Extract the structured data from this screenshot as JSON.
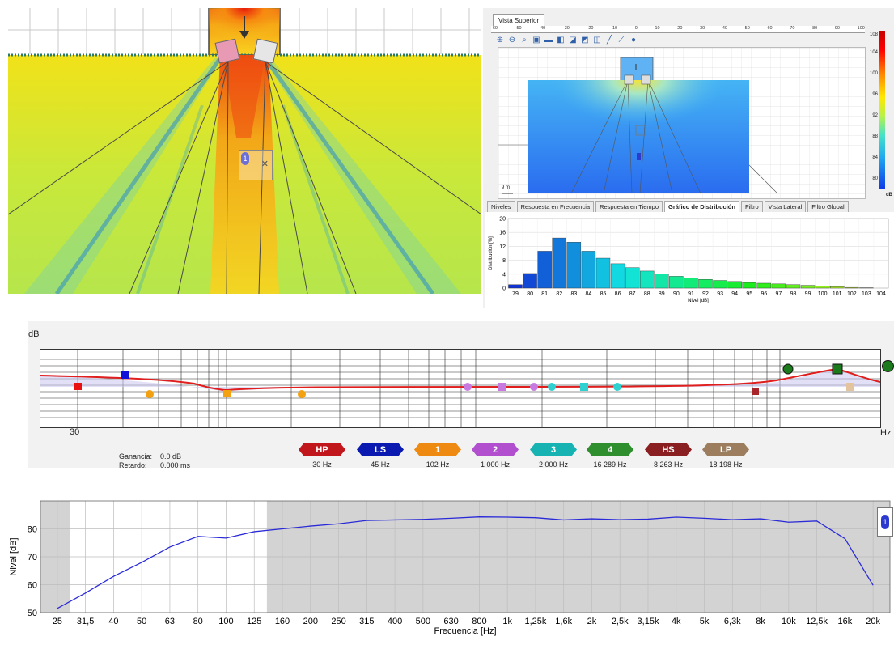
{
  "top_view": {
    "tab_label": "Vista Superior",
    "ruler_labels": [
      "-60",
      "-50",
      "-40",
      "-30",
      "-20",
      "-10",
      "0",
      "10",
      "20",
      "30",
      "40",
      "50",
      "60",
      "70",
      "80",
      "90",
      "100"
    ],
    "scale_label": "9 m",
    "colorbar": {
      "ticks": [
        "108",
        "104",
        "100",
        "96",
        "92",
        "88",
        "84",
        "80"
      ],
      "unit": "dB"
    },
    "tabs": [
      {
        "label": "Niveles",
        "active": false
      },
      {
        "label": "Respuesta en Frecuencia",
        "active": false
      },
      {
        "label": "Respuesta en Tiempo",
        "active": false
      },
      {
        "label": "Gráfico de Distribución",
        "active": true
      },
      {
        "label": "Filtro",
        "active": false
      },
      {
        "label": "Vista Lateral",
        "active": false
      },
      {
        "label": "Filtro Global",
        "active": false
      }
    ]
  },
  "distribution": {
    "chart_data": {
      "type": "bar",
      "ylabel": "Distribución [%]",
      "xlabel": "Nivel [dB]",
      "ylim": [
        0,
        20
      ],
      "yticks": [
        0,
        4,
        8,
        12,
        16,
        20
      ],
      "categories": [
        "79",
        "80",
        "81",
        "82",
        "83",
        "84",
        "85",
        "86",
        "87",
        "88",
        "89",
        "90",
        "91",
        "92",
        "93",
        "94",
        "95",
        "96",
        "97",
        "98",
        "99",
        "100",
        "101",
        "102",
        "103",
        "104"
      ],
      "values": [
        1.0,
        4.2,
        10.6,
        14.4,
        13.2,
        10.6,
        8.6,
        7.0,
        5.9,
        4.9,
        4.1,
        3.4,
        2.9,
        2.5,
        2.2,
        1.9,
        1.6,
        1.4,
        1.2,
        1.0,
        0.8,
        0.6,
        0.4,
        0.2,
        0.1,
        0.0
      ]
    }
  },
  "eq": {
    "db_label": "dB",
    "start_freq_label": "30",
    "hz_label": "Hz",
    "gain_label": "Ganancia:",
    "gain_value": "0.0 dB",
    "delay_label": "Retardo:",
    "delay_value": "0.000 ms",
    "filters": [
      {
        "label": "HP",
        "freq": "30 Hz",
        "color": "#c0161c"
      },
      {
        "label": "LS",
        "freq": "45 Hz",
        "color": "#0a1ab0"
      },
      {
        "label": "1",
        "freq": "102 Hz",
        "color": "#ee8a12"
      },
      {
        "label": "2",
        "freq": "1 000 Hz",
        "color": "#b24fcf"
      },
      {
        "label": "3",
        "freq": "2 000 Hz",
        "color": "#17b3b3"
      },
      {
        "label": "4",
        "freq": "16 289 Hz",
        "color": "#2f8f2f"
      },
      {
        "label": "HS",
        "freq": "8 263 Hz",
        "color": "#8a1f22"
      },
      {
        "label": "LP",
        "freq": "18 198 Hz",
        "color": "#9c7d5e"
      }
    ]
  },
  "freq_response": {
    "chart_data": {
      "type": "line",
      "ylabel": "Nivel [dB]",
      "xlabel": "Frecuencia [Hz]",
      "ylim": [
        50,
        90
      ],
      "yticks": [
        50,
        60,
        70,
        80
      ],
      "categories": [
        "25",
        "31,5",
        "40",
        "50",
        "63",
        "80",
        "100",
        "125",
        "160",
        "200",
        "250",
        "315",
        "400",
        "500",
        "630",
        "800",
        "1k",
        "1,25k",
        "1,6k",
        "2k",
        "2,5k",
        "3,15k",
        "4k",
        "5k",
        "6,3k",
        "8k",
        "10k",
        "12,5k",
        "16k",
        "20k"
      ],
      "values": [
        51.5,
        57,
        63,
        68,
        73.5,
        77.3,
        76.7,
        79,
        80,
        81,
        81.8,
        83,
        83.2,
        83.4,
        83.8,
        84.3,
        84.2,
        84,
        83.2,
        83.6,
        83.3,
        83.5,
        84.2,
        83.8,
        83.3,
        83.6,
        82.4,
        82.8,
        76.5,
        59.8
      ],
      "shaded_ranges": [
        [
          "25",
          "31,5"
        ],
        [
          "125",
          "20k"
        ]
      ]
    },
    "badge": "1"
  }
}
